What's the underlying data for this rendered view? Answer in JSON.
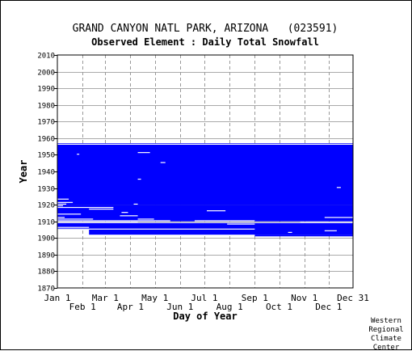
{
  "chart_data": {
    "type": "heatmap",
    "title": "GRAND CANYON NATL PARK, ARIZONA   (023591)",
    "subtitle": "Observed Element : Daily Total Snowfall",
    "xlabel": "Day of Year",
    "ylabel": "Year",
    "xlim": [
      1,
      365
    ],
    "ylim": [
      1870,
      2010
    ],
    "y_ticks": [
      1870,
      1880,
      1890,
      1900,
      1910,
      1920,
      1930,
      1940,
      1950,
      1960,
      1970,
      1980,
      1990,
      2000,
      2010
    ],
    "x_ticks_upper": [
      {
        "label": "Jan 1",
        "day": 1
      },
      {
        "label": "Mar 1",
        "day": 60
      },
      {
        "label": "May 1",
        "day": 121
      },
      {
        "label": "Jul 1",
        "day": 182
      },
      {
        "label": "Sep 1",
        "day": 244
      },
      {
        "label": "Nov 1",
        "day": 305
      },
      {
        "label": "Dec 31",
        "day": 365
      }
    ],
    "x_ticks_lower": [
      {
        "label": "Feb 1",
        "day": 32
      },
      {
        "label": "Apr 1",
        "day": 91
      },
      {
        "label": "Jun 1",
        "day": 152
      },
      {
        "label": "Aug 1",
        "day": 213
      },
      {
        "label": "Oct 1",
        "day": 274
      },
      {
        "label": "Dec 1",
        "day": 335
      }
    ],
    "grid": true,
    "data_color": "#0000ff",
    "coverage_blocks": [
      {
        "day_start": 1,
        "day_end": 365,
        "year_start": 1920,
        "year_end": 1957
      },
      {
        "day_start": 1,
        "day_end": 365,
        "year_start": 1910,
        "year_end": 1920
      },
      {
        "day_start": 1,
        "day_end": 365,
        "year_start": 1905,
        "year_end": 1909
      },
      {
        "day_start": 40,
        "day_end": 365,
        "year_start": 1902,
        "year_end": 1905
      },
      {
        "day_start": 244,
        "day_end": 365,
        "year_start": 1901,
        "year_end": 1902
      }
    ],
    "missing_records": [
      {
        "year": 1956,
        "day_start": 1,
        "day_end": 365,
        "note_free": true
      },
      {
        "year": 1951,
        "day_start": 100,
        "day_end": 115
      },
      {
        "year": 1950,
        "day_start": 25,
        "day_end": 28
      },
      {
        "year": 1945,
        "day_start": 128,
        "day_end": 134
      },
      {
        "year": 1935,
        "day_start": 100,
        "day_end": 104
      },
      {
        "year": 1930,
        "day_start": 345,
        "day_end": 350
      },
      {
        "year": 1923,
        "day_start": 1,
        "day_end": 15
      },
      {
        "year": 1921,
        "day_start": 1,
        "day_end": 20
      },
      {
        "year": 1920,
        "day_start": 1,
        "day_end": 12
      },
      {
        "year": 1920,
        "day_start": 95,
        "day_end": 100
      },
      {
        "year": 1919,
        "day_start": 1,
        "day_end": 8
      },
      {
        "year": 1918,
        "day_start": 1,
        "day_end": 70
      },
      {
        "year": 1917,
        "day_start": 40,
        "day_end": 70
      },
      {
        "year": 1916,
        "day_start": 185,
        "day_end": 208
      },
      {
        "year": 1915,
        "day_start": 80,
        "day_end": 88
      },
      {
        "year": 1914,
        "day_start": 1,
        "day_end": 30
      },
      {
        "year": 1913,
        "day_start": 78,
        "day_end": 100
      },
      {
        "year": 1912,
        "day_start": 1,
        "day_end": 10
      },
      {
        "year": 1912,
        "day_start": 330,
        "day_end": 365
      },
      {
        "year": 1911,
        "day_start": 1,
        "day_end": 45
      },
      {
        "year": 1911,
        "day_start": 100,
        "day_end": 120
      },
      {
        "year": 1910,
        "day_start": 1,
        "day_end": 140
      },
      {
        "year": 1910,
        "day_start": 170,
        "day_end": 244
      },
      {
        "year": 1909,
        "day_start": 1,
        "day_end": 100
      },
      {
        "year": 1909,
        "day_start": 300,
        "day_end": 365
      },
      {
        "year": 1908,
        "day_start": 210,
        "day_end": 244
      },
      {
        "year": 1906,
        "day_start": 1,
        "day_end": 40
      },
      {
        "year": 1905,
        "day_start": 1,
        "day_end": 244
      },
      {
        "year": 1904,
        "day_start": 330,
        "day_end": 345
      },
      {
        "year": 1903,
        "day_start": 285,
        "day_end": 290
      }
    ]
  },
  "footer": {
    "credit_lines": [
      "Western",
      "Regional",
      "Climate",
      "Center"
    ]
  }
}
